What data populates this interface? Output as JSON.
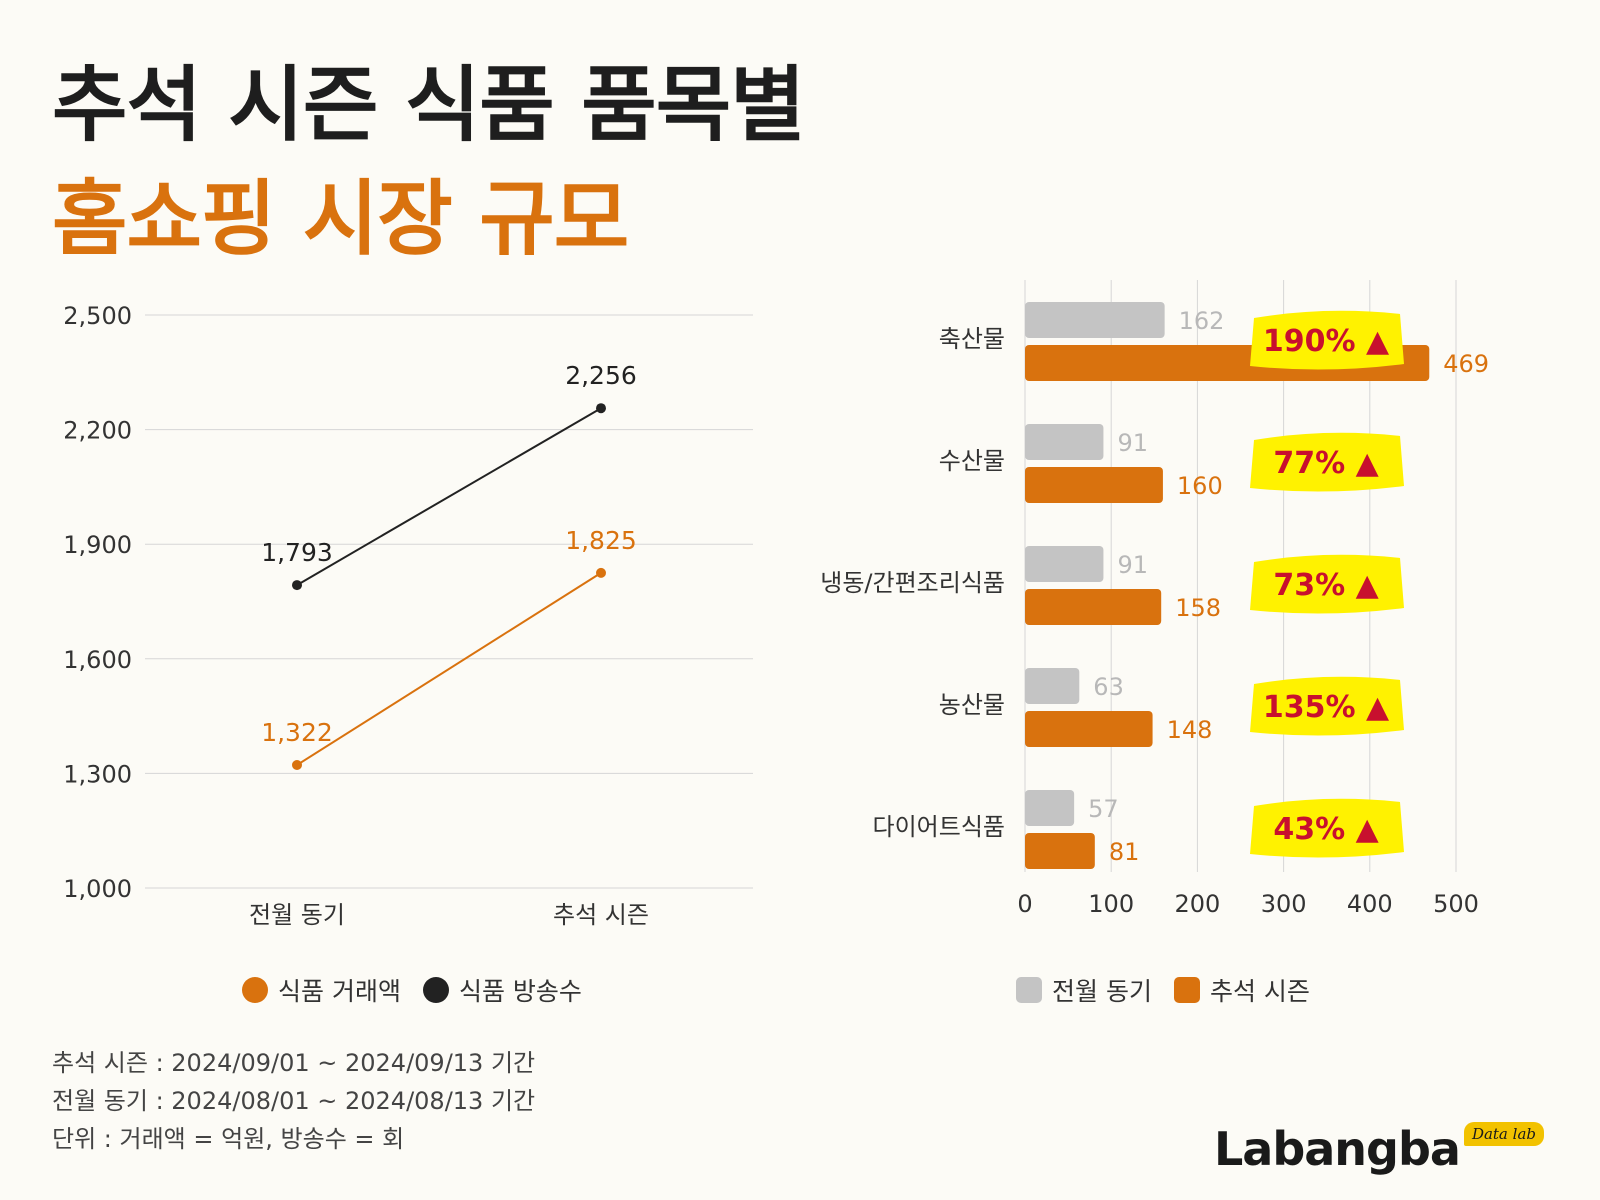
{
  "title": {
    "line1": "추석 시즌 식품 품목별",
    "line2": "홈쇼핑 시장 규모"
  },
  "colors": {
    "accent": "#d9720e",
    "dark": "#222222",
    "gray": "#c4c4c4",
    "highlight": "#fff200",
    "pct_text": "#c8102e"
  },
  "chart_data": [
    {
      "type": "line",
      "categories": [
        "전월 동기",
        "추석 시즌"
      ],
      "y_ticks": [
        "2,500",
        "2,200",
        "1,900",
        "1,600",
        "1,300",
        "1,000"
      ],
      "ylim": [
        1000,
        2500
      ],
      "grid": true,
      "legend_position": "bottom",
      "series": [
        {
          "name": "식품 거래액",
          "values": [
            1322,
            1825
          ],
          "labels": [
            "1,322",
            "1,825"
          ],
          "color": "#d9720e"
        },
        {
          "name": "식품 방송수",
          "values": [
            1793,
            2256
          ],
          "labels": [
            "1,793",
            "2,256"
          ],
          "color": "#222222"
        }
      ]
    },
    {
      "type": "bar",
      "orientation": "horizontal",
      "categories": [
        "축산물",
        "수산물",
        "냉동/간편조리식품",
        "농산물",
        "다이어트식품"
      ],
      "x_ticks": [
        "0",
        "100",
        "200",
        "300",
        "400",
        "500"
      ],
      "xlim": [
        0,
        500
      ],
      "grid": true,
      "legend_position": "bottom",
      "series": [
        {
          "name": "전월 동기",
          "values": [
            162,
            91,
            91,
            63,
            57
          ],
          "color": "#c4c4c4"
        },
        {
          "name": "추석 시즌",
          "values": [
            469,
            160,
            158,
            148,
            81
          ],
          "color": "#d9720e"
        }
      ],
      "growth_labels": [
        "190% ▲",
        "77% ▲",
        "73% ▲",
        "135% ▲",
        "43% ▲"
      ]
    }
  ],
  "notes": [
    "추석 시즌 : 2024/09/01 ~ 2024/09/13 기간",
    "전월 동기 : 2024/08/01 ~ 2024/08/13 기간",
    "단위 : 거래액 = 억원, 방송수 = 회"
  ],
  "brand": {
    "name": "Labangba",
    "tag": "Data lab"
  }
}
